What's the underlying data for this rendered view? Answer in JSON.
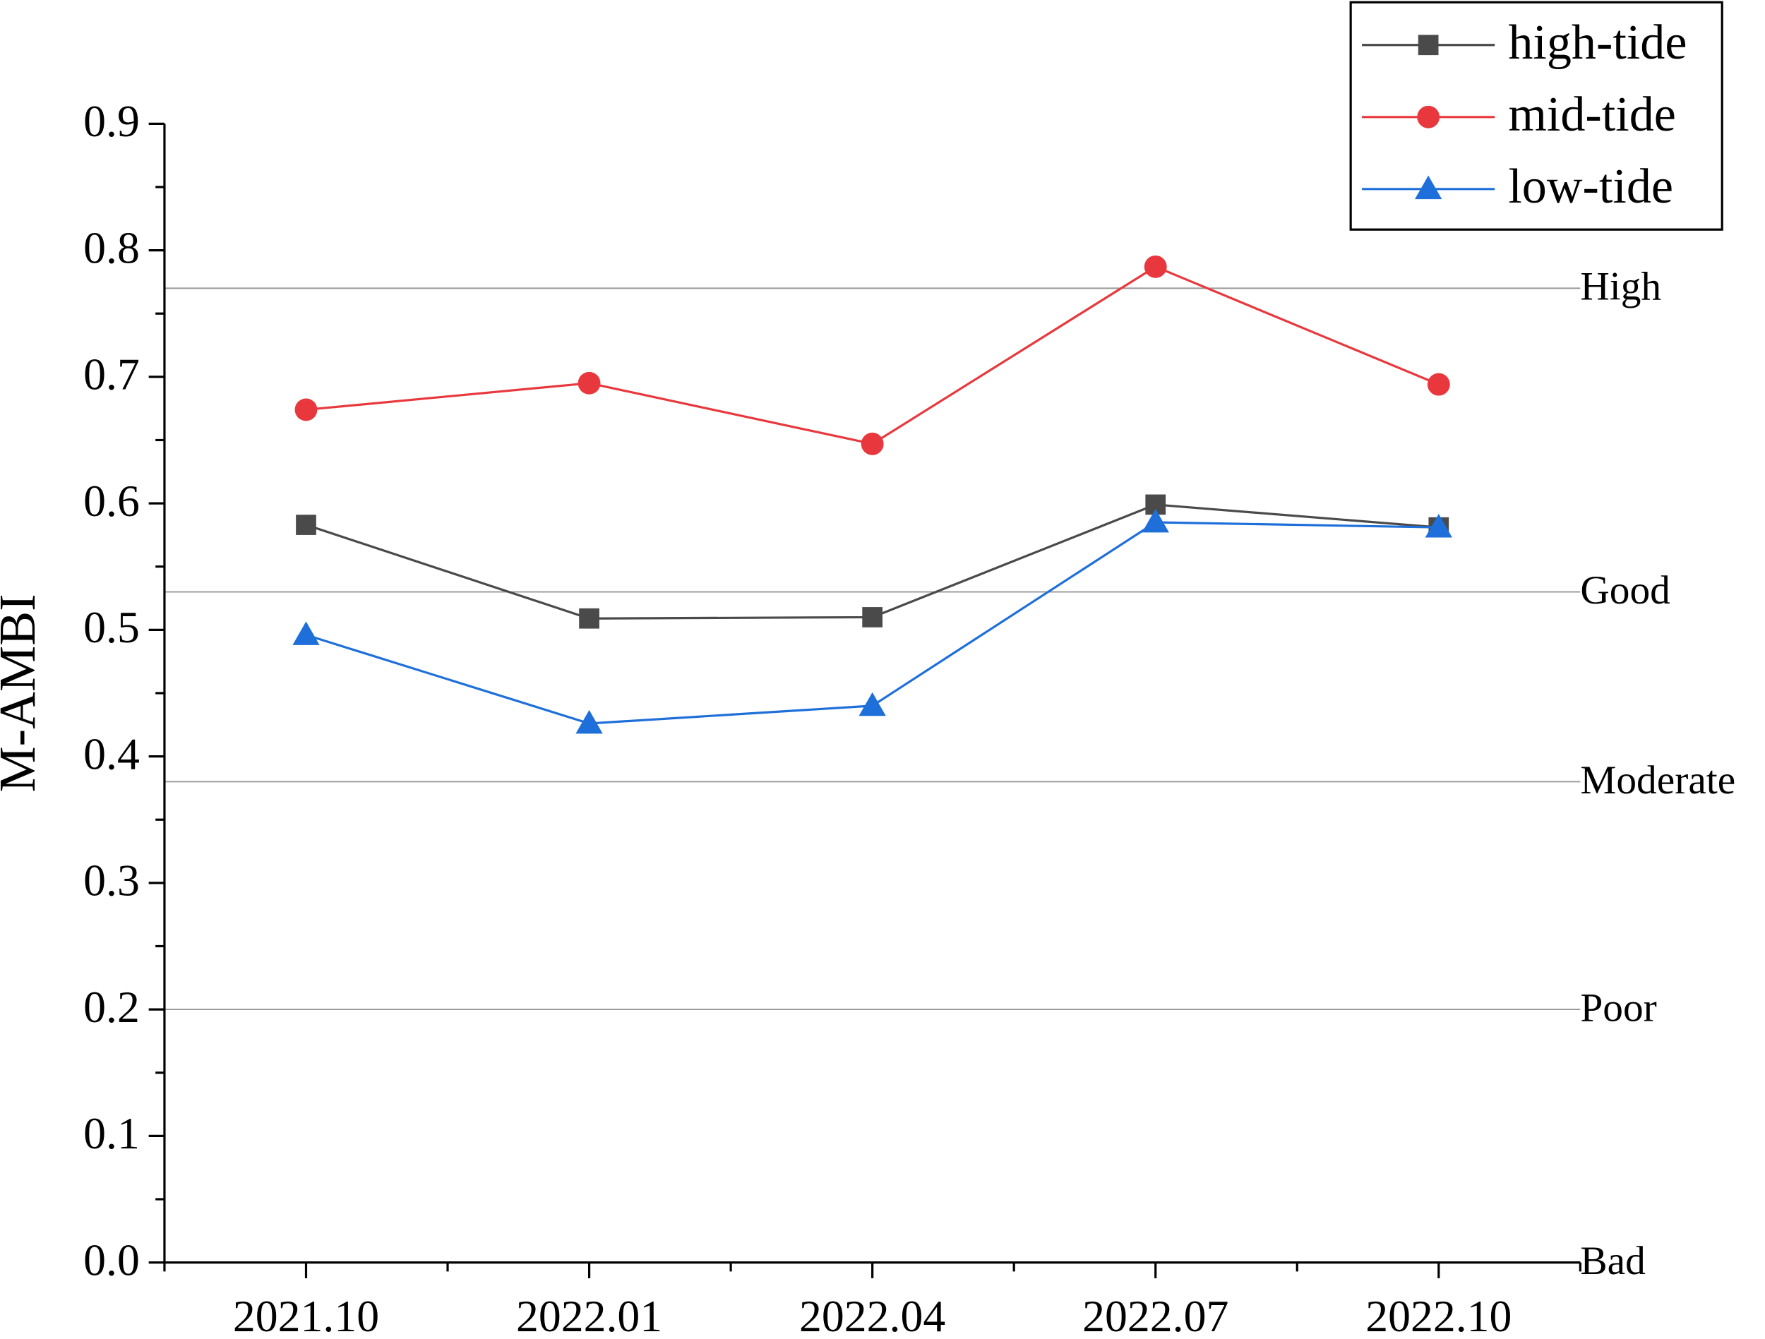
{
  "chart_data": {
    "type": "line",
    "y_label": "M-AMBI",
    "categories": [
      "2021.10",
      "2022.01",
      "2022.04",
      "2022.07",
      "2022.10"
    ],
    "series": [
      {
        "name": "high-tide",
        "color": "#4a4a4a",
        "marker": "square",
        "values": [
          0.583,
          0.509,
          0.51,
          0.599,
          0.581
        ]
      },
      {
        "name": "mid-tide",
        "color": "#e8383d",
        "marker": "circle",
        "values": [
          0.674,
          0.695,
          0.647,
          0.787,
          0.694
        ]
      },
      {
        "name": "low-tide",
        "color": "#1e6fd9",
        "marker": "triangle",
        "values": [
          0.496,
          0.426,
          0.44,
          0.585,
          0.581
        ]
      }
    ],
    "ylim": [
      0,
      0.9
    ],
    "yticks": [
      {
        "value": 0,
        "label": "0.0"
      },
      0.1,
      0.2,
      0.3,
      0.4,
      0.5,
      0.6,
      0.7,
      0.8,
      0.9
    ],
    "reference_lines": [
      {
        "value": 0.77,
        "label": "High"
      },
      {
        "value": 0.53,
        "label": "Good"
      },
      {
        "value": 0.38,
        "label": "Moderate"
      },
      {
        "value": 0.2,
        "label": "Poor"
      },
      {
        "value": 0,
        "label": "Bad"
      }
    ],
    "legend": "top-right"
  }
}
